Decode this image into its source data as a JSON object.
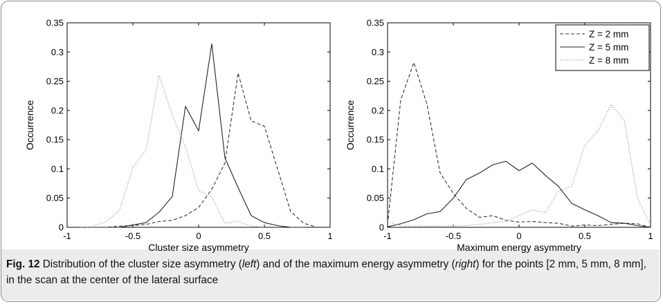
{
  "chart_data": [
    {
      "type": "line",
      "xlabel": "Cluster size asymmetry",
      "ylabel": "Occurrence",
      "xlim": [
        -1,
        1
      ],
      "ylim": [
        0,
        0.35
      ],
      "xticks": [
        -1,
        -0.5,
        0,
        0.5,
        1
      ],
      "xtick_labels": [
        "-1",
        "-0.5",
        "0",
        "0.5",
        "1"
      ],
      "yticks": [
        0,
        0.05,
        0.1,
        0.15,
        0.2,
        0.25,
        0.3,
        0.35
      ],
      "ytick_labels": [
        "0",
        "0.05",
        "0.1",
        "0.15",
        "0.2",
        "0.25",
        "0.3",
        "0.35"
      ],
      "grid": false,
      "legend": null,
      "series": [
        {
          "label": "Z = 2 mm",
          "style": "dashed",
          "color": "#333333",
          "x": [
            -0.9,
            -0.8,
            -0.7,
            -0.6,
            -0.5,
            -0.4,
            -0.3,
            -0.2,
            -0.1,
            0,
            0.1,
            0.2,
            0.3,
            0.4,
            0.5,
            0.6,
            0.7,
            0.8,
            0.9
          ],
          "y": [
            0,
            0,
            0,
            0.002,
            0.003,
            0.005,
            0.01,
            0.012,
            0.02,
            0.034,
            0.065,
            0.11,
            0.264,
            0.182,
            0.173,
            0.1,
            0.027,
            0.007,
            0
          ]
        },
        {
          "label": "Z = 5 mm",
          "style": "solid",
          "color": "#222222",
          "x": [
            -0.8,
            -0.7,
            -0.6,
            -0.5,
            -0.4,
            -0.3,
            -0.2,
            -0.1,
            0,
            0.1,
            0.2,
            0.3,
            0.4,
            0.5,
            0.6,
            0.7,
            0.8
          ],
          "y": [
            0,
            0,
            0,
            0.004,
            0.008,
            0.026,
            0.053,
            0.207,
            0.165,
            0.314,
            0.119,
            0.068,
            0.02,
            0.008,
            0.003,
            0,
            0
          ]
        },
        {
          "label": "Z = 8 mm",
          "style": "dotted",
          "color": "#9a9a9a",
          "x": [
            -0.8,
            -0.7,
            -0.6,
            -0.5,
            -0.4,
            -0.3,
            -0.2,
            -0.1,
            0,
            0.1,
            0.2,
            0.3,
            0.4,
            0.5
          ],
          "y": [
            0.002,
            0.01,
            0.03,
            0.102,
            0.133,
            0.26,
            0.192,
            0.138,
            0.063,
            0.052,
            0.007,
            0.01,
            0.002,
            0
          ]
        }
      ]
    },
    {
      "type": "line",
      "xlabel": "Maximum energy asymmetry",
      "ylabel": "Occurrence",
      "xlim": [
        -1,
        1
      ],
      "ylim": [
        0,
        0.35
      ],
      "xticks": [
        -1,
        -0.5,
        0,
        0.5,
        1
      ],
      "xtick_labels": [
        "-1",
        "-0.5",
        "0",
        "0.5",
        "1"
      ],
      "yticks": [
        0,
        0.05,
        0.1,
        0.15,
        0.2,
        0.25,
        0.3,
        0.35
      ],
      "ytick_labels": [
        "0",
        "0.05",
        "0.1",
        "0.15",
        "0.2",
        "0.25",
        "0.3",
        "0.35"
      ],
      "grid": false,
      "legend": "top-right",
      "series": [
        {
          "label": "Z = 2 mm",
          "style": "dashed",
          "color": "#333333",
          "x": [
            -1,
            -0.9,
            -0.8,
            -0.7,
            -0.6,
            -0.5,
            -0.4,
            -0.3,
            -0.2,
            -0.1,
            0,
            0.1,
            0.2,
            0.3,
            0.4,
            0.5,
            0.6,
            0.7,
            0.8,
            0.9,
            1
          ],
          "y": [
            0.005,
            0.218,
            0.282,
            0.21,
            0.093,
            0.058,
            0.032,
            0.017,
            0.02,
            0.012,
            0.009,
            0.01,
            0.008,
            0.007,
            0.002,
            0.004,
            0.003,
            0.005,
            0.007,
            0.006,
            0
          ]
        },
        {
          "label": "Z = 5 mm",
          "style": "solid",
          "color": "#222222",
          "x": [
            -1,
            -0.9,
            -0.8,
            -0.7,
            -0.6,
            -0.5,
            -0.4,
            -0.3,
            -0.2,
            -0.1,
            0,
            0.1,
            0.2,
            0.3,
            0.4,
            0.5,
            0.6,
            0.7,
            0.8,
            0.9,
            1
          ],
          "y": [
            0.001,
            0.006,
            0.013,
            0.023,
            0.027,
            0.05,
            0.082,
            0.093,
            0.107,
            0.113,
            0.097,
            0.11,
            0.089,
            0.07,
            0.041,
            0.03,
            0.02,
            0.008,
            0.007,
            0.003,
            0
          ]
        },
        {
          "label": "Z = 8 mm",
          "style": "dotted",
          "color": "#9a9a9a",
          "x": [
            -1,
            -0.9,
            -0.8,
            -0.7,
            -0.6,
            -0.5,
            -0.4,
            -0.3,
            -0.2,
            -0.1,
            0,
            0.1,
            0.2,
            0.3,
            0.4,
            0.5,
            0.6,
            0.7,
            0.8,
            0.9,
            1
          ],
          "y": [
            0.01,
            0.003,
            0.002,
            0.002,
            0.002,
            0.002,
            0.003,
            0.005,
            0.008,
            0.01,
            0.02,
            0.03,
            0.025,
            0.062,
            0.07,
            0.14,
            0.165,
            0.21,
            0.183,
            0.05,
            0.004
          ]
        }
      ]
    }
  ],
  "caption": {
    "label": "Fig. 12",
    "text_1": " Distribution of the cluster size asymmetry (",
    "left_word": "left",
    "text_2": ") and of the maximum energy asymmetry (",
    "right_word": "right",
    "text_3": ") for the points [2 mm, 5 mm, 8 mm], in the scan at the center of the lateral surface"
  }
}
